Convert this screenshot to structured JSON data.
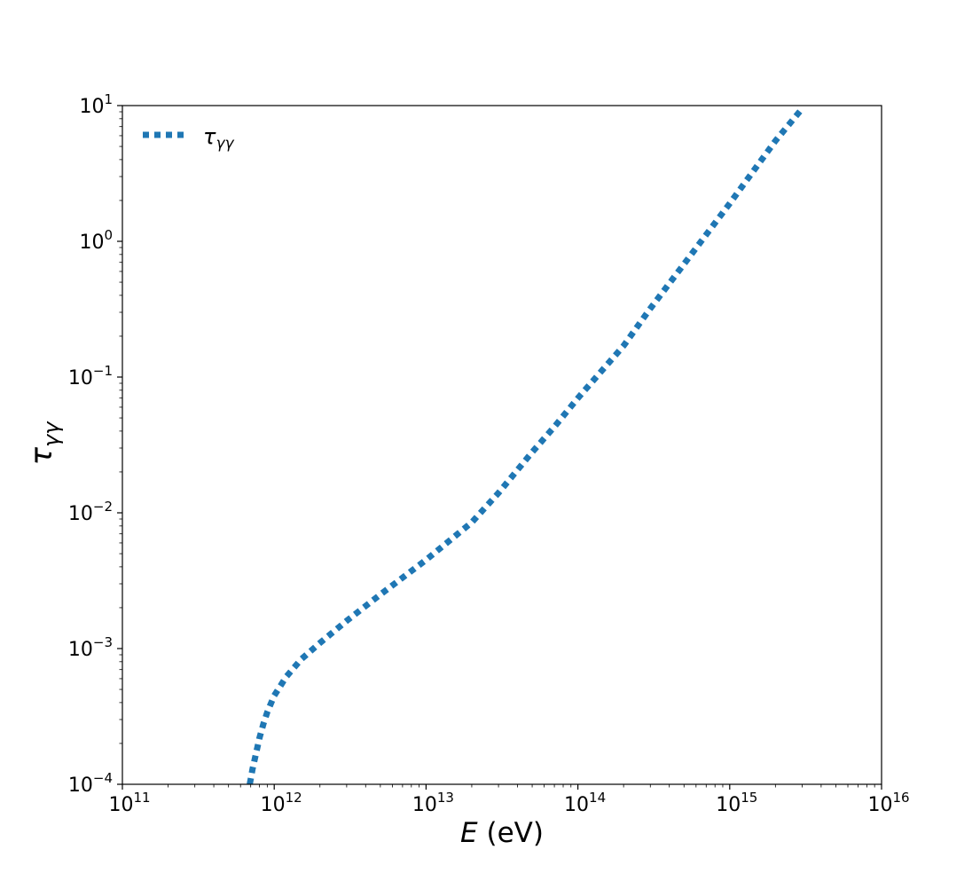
{
  "chart_data": {
    "type": "line",
    "xlabel_italic": "E",
    "xlabel_unit": " (eV)",
    "ylabel_main": "τ",
    "ylabel_sub": "γγ",
    "xscale": "log",
    "yscale": "log",
    "xlim": [
      100000000000.0,
      1e+16
    ],
    "ylim": [
      0.0001,
      10
    ],
    "grid": false,
    "legend_position": "top-left",
    "x_tick_exponents": [
      "11",
      "12",
      "13",
      "14",
      "15",
      "16"
    ],
    "y_tick_exponents": [
      "1",
      "0",
      "−1",
      "−2",
      "−3",
      "−4"
    ],
    "series": [
      {
        "name_main": "τ",
        "name_sub": "γγ",
        "color": "#1f77b4",
        "linestyle": "dotted",
        "x": [
          690000000000.0,
          720000000000.0,
          760000000000.0,
          800000000000.0,
          850000000000.0,
          900000000000.0,
          1000000000000.0,
          1200000000000.0,
          1500000000000.0,
          2000000000000.0,
          3000000000000.0,
          5000000000000.0,
          10000000000000.0,
          20000000000000.0,
          30000000000000.0,
          50000000000000.0,
          70000000000000.0,
          100000000000000.0,
          200000000000000.0,
          300000000000000.0,
          500000000000000.0,
          1000000000000000.0,
          2000000000000000.0,
          3000000000000000.0
        ],
        "y": [
          0.0001,
          0.00013,
          0.00017,
          0.00022,
          0.00028,
          0.00034,
          0.00045,
          0.00062,
          0.00083,
          0.0011,
          0.0016,
          0.0025,
          0.0045,
          0.0085,
          0.014,
          0.028,
          0.043,
          0.07,
          0.17,
          0.32,
          0.68,
          1.9,
          5.5,
          9.5
        ]
      }
    ]
  }
}
